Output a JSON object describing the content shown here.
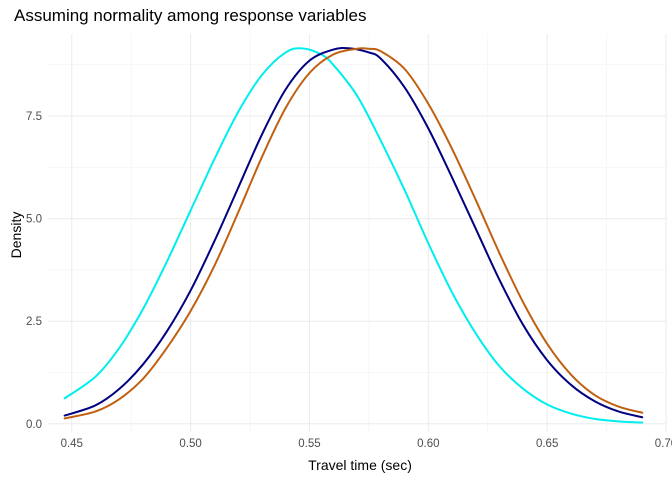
{
  "chart_data": {
    "type": "line",
    "title": "Assuming normality among response variables",
    "xlabel": "Travel time (sec)",
    "ylabel": "Density",
    "xlim": [
      0.44,
      0.7
    ],
    "ylim": [
      -0.2,
      9.5
    ],
    "x_ticks": [
      0.45,
      0.5,
      0.55,
      0.6,
      0.65,
      0.7
    ],
    "x_tick_labels": [
      "0.45",
      "0.50",
      "0.55",
      "0.60",
      "0.65",
      "0.70"
    ],
    "y_ticks": [
      0.0,
      2.5,
      5.0,
      7.5
    ],
    "y_tick_labels": [
      "0.0",
      "2.5",
      "5.0",
      "7.5"
    ],
    "grid": true,
    "legend": "none",
    "series": [
      {
        "color": "#00EEEE",
        "x": [
          0.447,
          0.46,
          0.47,
          0.48,
          0.49,
          0.5,
          0.51,
          0.52,
          0.53,
          0.54,
          0.547,
          0.555,
          0.56,
          0.57,
          0.58,
          0.59,
          0.6,
          0.61,
          0.62,
          0.63,
          0.64,
          0.65,
          0.66,
          0.67,
          0.68,
          0.69
        ],
        "y": [
          0.62,
          1.15,
          1.85,
          2.8,
          3.95,
          5.2,
          6.45,
          7.6,
          8.5,
          9.05,
          9.15,
          9.0,
          8.75,
          8.0,
          6.9,
          5.7,
          4.4,
          3.2,
          2.2,
          1.4,
          0.85,
          0.47,
          0.25,
          0.12,
          0.06,
          0.03
        ]
      },
      {
        "color": "#000080",
        "x": [
          0.447,
          0.46,
          0.47,
          0.48,
          0.49,
          0.5,
          0.51,
          0.52,
          0.53,
          0.54,
          0.55,
          0.56,
          0.567,
          0.575,
          0.58,
          0.59,
          0.6,
          0.61,
          0.62,
          0.63,
          0.64,
          0.65,
          0.66,
          0.67,
          0.68,
          0.69
        ],
        "y": [
          0.2,
          0.45,
          0.85,
          1.45,
          2.25,
          3.25,
          4.45,
          5.75,
          7.05,
          8.15,
          8.85,
          9.12,
          9.15,
          9.05,
          8.9,
          8.2,
          7.2,
          6.0,
          4.75,
          3.5,
          2.4,
          1.55,
          0.95,
          0.55,
          0.3,
          0.16
        ]
      },
      {
        "color": "#C06010",
        "x": [
          0.447,
          0.46,
          0.47,
          0.48,
          0.49,
          0.5,
          0.51,
          0.52,
          0.53,
          0.54,
          0.55,
          0.56,
          0.57,
          0.575,
          0.58,
          0.59,
          0.6,
          0.61,
          0.62,
          0.63,
          0.64,
          0.65,
          0.66,
          0.67,
          0.68,
          0.69
        ],
        "y": [
          0.13,
          0.3,
          0.6,
          1.1,
          1.85,
          2.75,
          3.85,
          5.15,
          6.5,
          7.7,
          8.55,
          9.0,
          9.14,
          9.14,
          9.08,
          8.65,
          7.8,
          6.7,
          5.45,
          4.15,
          2.95,
          1.95,
          1.2,
          0.7,
          0.42,
          0.27
        ]
      }
    ]
  }
}
